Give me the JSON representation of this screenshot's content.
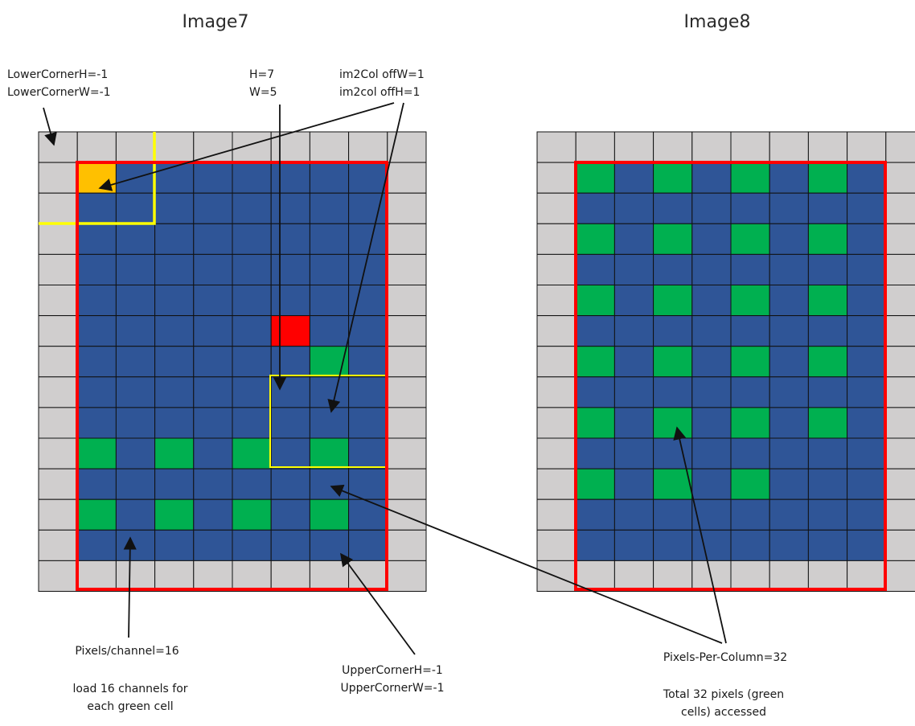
{
  "titles": {
    "left": "Image7",
    "right": "Image8"
  },
  "colors": {
    "pad": "#d0cece",
    "inner": "#2f5597",
    "green": "#00b050",
    "orange": "#ffc000",
    "red": "#ff0000",
    "yellow": "#ffff00",
    "gridline": "#111111"
  },
  "grid": {
    "rows": 15,
    "cols": 10,
    "pad": 1
  },
  "left": {
    "green_cells": [
      [
        7,
        7
      ],
      [
        10,
        1
      ],
      [
        10,
        3
      ],
      [
        10,
        5
      ],
      [
        10,
        7
      ],
      [
        12,
        1
      ],
      [
        12,
        3
      ],
      [
        12,
        5
      ],
      [
        12,
        7
      ]
    ],
    "orange_cells": [
      [
        1,
        1
      ]
    ],
    "red_cells": [
      [
        6,
        6
      ]
    ]
  },
  "right": {
    "green_cells": [
      [
        1,
        1
      ],
      [
        1,
        3
      ],
      [
        1,
        5
      ],
      [
        1,
        7
      ],
      [
        3,
        1
      ],
      [
        3,
        3
      ],
      [
        3,
        5
      ],
      [
        3,
        7
      ],
      [
        5,
        1
      ],
      [
        5,
        3
      ],
      [
        5,
        5
      ],
      [
        5,
        7
      ],
      [
        7,
        1
      ],
      [
        7,
        3
      ],
      [
        7,
        5
      ],
      [
        7,
        7
      ],
      [
        9,
        1
      ],
      [
        9,
        3
      ],
      [
        9,
        5
      ],
      [
        9,
        7
      ],
      [
        11,
        1
      ],
      [
        11,
        3
      ],
      [
        11,
        5
      ]
    ]
  },
  "labels": {
    "lower_corner": [
      "LowerCornerH=-1",
      "LowerCornerW=-1"
    ],
    "hw": [
      "H=7",
      "W=5"
    ],
    "im2col": [
      "im2Col offW=1",
      "im2col offH=1"
    ],
    "pixels_channel": "Pixels/channel=16",
    "load": [
      "load 16 channels for",
      "each green cell"
    ],
    "upper_corner": [
      "UpperCornerH=-1",
      "UpperCornerW=-1"
    ],
    "ppc": "Pixels-Per-Column=32",
    "total": [
      "Total 32 pixels (green",
      "cells) accessed"
    ]
  }
}
